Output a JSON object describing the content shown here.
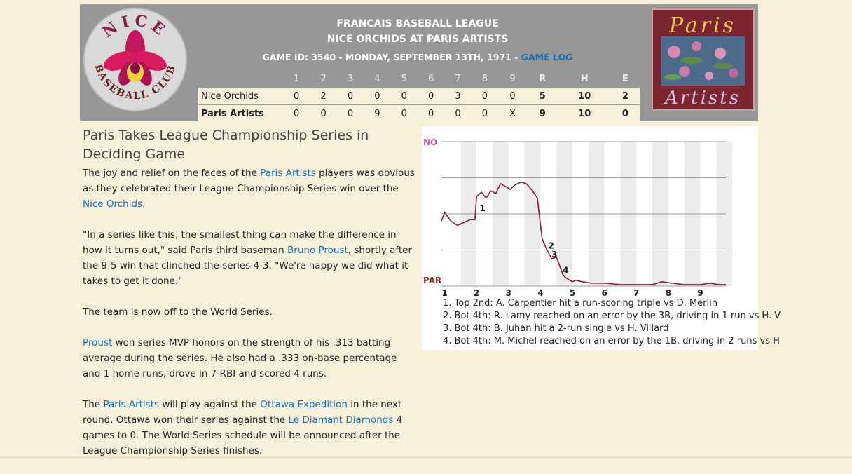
{
  "header": {
    "league": "FRANCAIS BASEBALL LEAGUE",
    "matchup": "NICE ORCHIDS AT PARIS ARTISTS",
    "game_info": "GAME ID: 3540 - MONDAY, SEPTEMBER 13TH, 1971 - ",
    "game_log_link": "GAME LOG"
  },
  "logos": {
    "away_top": "NICE",
    "away_bottom": "BASEBALL CLUB",
    "home_top": "Paris",
    "home_bottom": "Artists"
  },
  "linescore": {
    "headers": [
      "",
      "1",
      "2",
      "3",
      "4",
      "5",
      "6",
      "7",
      "8",
      "9",
      "R",
      "H",
      "E"
    ],
    "rows": [
      {
        "team": "Nice Orchids",
        "innings": [
          "0",
          "2",
          "0",
          "0",
          "0",
          "0",
          "3",
          "0",
          "0"
        ],
        "r": "5",
        "h": "10",
        "e": "2"
      },
      {
        "team": "Paris Artists",
        "innings": [
          "0",
          "0",
          "0",
          "9",
          "0",
          "0",
          "0",
          "0",
          "X"
        ],
        "r": "9",
        "h": "10",
        "e": "0"
      }
    ]
  },
  "article": {
    "headline": "Paris Takes League Championship Series in Deciding Game",
    "p1_a": "The joy and relief on the faces of the ",
    "p1_link1": "Paris Artists",
    "p1_b": " players was obvious as they celebrated their League Championship Series win over the ",
    "p1_link2": "Nice Orchids",
    "p1_c": ".",
    "p2_a": "\"In a series like this, the smallest thing can make the difference in how it turns out,\" said Paris third baseman ",
    "p2_link": "Bruno Proust",
    "p2_b": ", shortly after the 9-5 win that clinched the series 4-3. \"We're happy we did what it takes to get it done.\"",
    "p3": "The team is now off to the World Series.",
    "p4_link": "Proust",
    "p4_a": " won series MVP honors on the strength of his .313 batting average during the series. He also had a .333 on-base percentage and 1 home runs, drove in 7 RBI and scored 4 runs.",
    "p5_a": "The ",
    "p5_link1": "Paris Artists",
    "p5_b": " will play against the ",
    "p5_link2": "Ottawa Expedition",
    "p5_c": " in the next round. Ottawa won their series against the ",
    "p5_link3": "Le Diamant Diamonds",
    "p5_d": " 4 games to 0. The World Series schedule will be announced after the League Championship Series finishes."
  },
  "chart_data": {
    "type": "line",
    "title": "",
    "y_top_label": "NO",
    "y_bottom_label": "PAR",
    "y_range": [
      0,
      100
    ],
    "x_range": [
      0.9,
      9.8
    ],
    "inning_labels": [
      "1",
      "2",
      "3",
      "4",
      "5",
      "6",
      "7",
      "8",
      "9"
    ],
    "line_color": "#8b1a2e",
    "top_label_color": "#c0609a",
    "bottom_label_color": "#8b2a2a",
    "series": [
      {
        "x": [
          0.9,
          1.0,
          1.2,
          1.4,
          1.6,
          1.8,
          1.95,
          2.0,
          2.15,
          2.3,
          2.45,
          2.6,
          2.75,
          2.9,
          3.05,
          3.2,
          3.4,
          3.55,
          3.75,
          3.9,
          4.05,
          4.2,
          4.35,
          4.5,
          4.6,
          4.7,
          4.78,
          4.85,
          4.92,
          5.0,
          5.1,
          5.3,
          5.6,
          6.0,
          6.5,
          7.0,
          7.5,
          7.8,
          8.1,
          8.5,
          9.0,
          9.3,
          9.6,
          9.8
        ],
        "y": [
          45,
          51,
          45,
          42,
          44,
          46,
          46,
          62,
          65,
          61,
          66,
          64,
          71,
          69,
          67,
          70,
          72,
          71,
          66,
          61,
          33,
          25,
          19,
          20,
          14,
          8,
          6,
          5,
          4,
          3,
          4,
          3,
          2,
          2,
          1,
          1,
          1,
          3,
          2,
          1,
          1,
          2,
          1,
          1
        ]
      }
    ],
    "markers": [
      {
        "label": "1",
        "x": 2.05,
        "y": 52
      },
      {
        "label": "2",
        "x": 4.2,
        "y": 26
      },
      {
        "label": "3",
        "x": 4.3,
        "y": 20
      },
      {
        "label": "4",
        "x": 4.65,
        "y": 9
      }
    ],
    "plays": [
      "1. Top 2nd: A. Carpentier hit a run-scoring triple vs D. Merlin",
      "2. Bot 4th: R. Lamy reached on an error by the 3B, driving in 1 run vs H. V",
      "3. Bot 4th: B. Juhan hit a 2-run single vs H. Villard",
      "4. Bot 4th: M. Michel reached on an error by the 1B, driving in 2 runs vs H"
    ]
  }
}
